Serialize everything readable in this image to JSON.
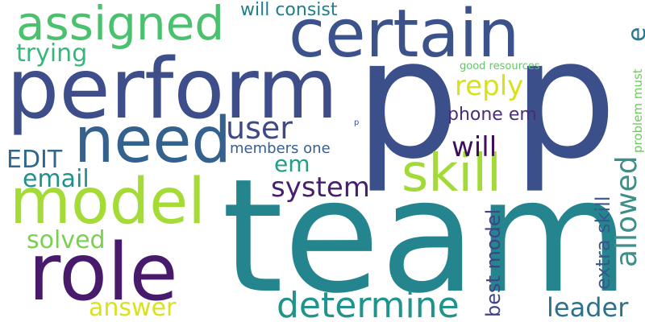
{
  "wordcloud": {
    "words": [
      {
        "key": "team",
        "text": "team",
        "color": "#25858e"
      },
      {
        "key": "p_big",
        "text": "p p",
        "color": "#3b4f8a"
      },
      {
        "key": "perform",
        "text": "perform",
        "color": "#3d4e8a"
      },
      {
        "key": "certain",
        "text": "certain",
        "color": "#3b528b"
      },
      {
        "key": "role",
        "text": "role",
        "color": "#481a6c"
      },
      {
        "key": "model",
        "text": "model",
        "color": "#a5db36"
      },
      {
        "key": "need",
        "text": "need",
        "color": "#34618d"
      },
      {
        "key": "assigned",
        "text": "assigned",
        "color": "#4ac16d"
      },
      {
        "key": "skill",
        "text": "skill",
        "color": "#a2da37"
      },
      {
        "key": "determine",
        "text": "determine",
        "color": "#1f948c"
      },
      {
        "key": "user",
        "text": "user",
        "color": "#3e4989"
      },
      {
        "key": "em",
        "text": "em",
        "color": "#1f9e89"
      },
      {
        "key": "system",
        "text": "system",
        "color": "#481f70"
      },
      {
        "key": "will",
        "text": "will",
        "color": "#3f0f5b"
      },
      {
        "key": "reply",
        "text": "reply",
        "color": "#d8e219"
      },
      {
        "key": "trying",
        "text": "trying",
        "color": "#35b779"
      },
      {
        "key": "will_consist",
        "text": "will consist",
        "color": "#1e7e8e"
      },
      {
        "key": "phone_em",
        "text": "phone em",
        "color": "#472d7b"
      },
      {
        "key": "members_one",
        "text": "members one",
        "color": "#355f8d"
      },
      {
        "key": "edit",
        "text": "EDIT",
        "color": "#30678d"
      },
      {
        "key": "email",
        "text": "email",
        "color": "#22908d"
      },
      {
        "key": "solved",
        "text": "solved",
        "color": "#7ad151"
      },
      {
        "key": "answer",
        "text": "answer",
        "color": "#dae21a"
      },
      {
        "key": "leader",
        "text": "leader",
        "color": "#2c728e"
      },
      {
        "key": "allowed",
        "text": "allowed",
        "color": "#3e8f8a"
      },
      {
        "key": "extra_skill",
        "text": "extra skill",
        "color": "#38588c"
      },
      {
        "key": "best_model",
        "text": "best model",
        "color": "#404387"
      },
      {
        "key": "problem_must",
        "text": "problem must",
        "color": "#5ec962"
      },
      {
        "key": "good_resources",
        "text": "good resources",
        "color": "#6ccd5a"
      },
      {
        "key": "e",
        "text": "e",
        "color": "#2a788e"
      },
      {
        "key": "p_small",
        "text": "p",
        "color": "#3b528b"
      }
    ]
  }
}
